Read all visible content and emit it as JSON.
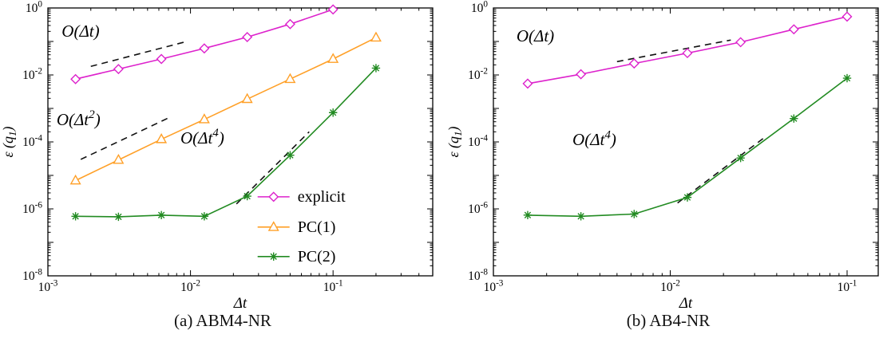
{
  "colors": {
    "explicit": "#dd22cc",
    "pc1": "#ffa028",
    "pc2": "#228B22",
    "guide": "#111111",
    "frame": "#000000"
  },
  "chart_data": [
    {
      "type": "line",
      "caption": "(a) ABM4-NR",
      "xlabel": "Δt",
      "ylabel": "ε (q_{1})",
      "xscale": "log",
      "yscale": "log",
      "xlim": [
        0.001,
        0.5
      ],
      "ylim": [
        1e-08,
        1
      ],
      "x_tick_exponents": [
        -3,
        -2,
        -1
      ],
      "y_tick_exponents": [
        0,
        -2,
        -4,
        -6,
        -8
      ],
      "legend": true,
      "series": [
        {
          "name": "explicit",
          "marker": "diamond",
          "color": "#dd22cc",
          "x": [
            0.0015625,
            0.003125,
            0.00625,
            0.0125,
            0.025,
            0.05,
            0.1
          ],
          "y": [
            0.0075,
            0.015,
            0.03,
            0.062,
            0.135,
            0.33,
            0.9
          ]
        },
        {
          "name": "PC(1)",
          "marker": "triangle",
          "color": "#ffa028",
          "x": [
            0.0015625,
            0.003125,
            0.00625,
            0.0125,
            0.025,
            0.05,
            0.1,
            0.2
          ],
          "y": [
            7e-06,
            2.9e-05,
            0.00012,
            0.00047,
            0.0019,
            0.0075,
            0.03,
            0.13
          ]
        },
        {
          "name": "PC(2)",
          "marker": "star",
          "color": "#228B22",
          "x": [
            0.0015625,
            0.003125,
            0.00625,
            0.0125,
            0.025,
            0.05,
            0.1,
            0.2
          ],
          "y": [
            6e-07,
            5.8e-07,
            6.5e-07,
            6e-07,
            2.4e-06,
            4e-05,
            0.00075,
            0.016
          ]
        }
      ],
      "guides": [
        {
          "label": "O(Δt)",
          "label_at": [
            0.00125,
            0.14
          ],
          "x": [
            0.002,
            0.009
          ],
          "y": [
            0.018,
            0.095
          ]
        },
        {
          "label": "O(Δt^{2})",
          "label_at": [
            0.00115,
            0.00032
          ],
          "x": [
            0.0017,
            0.007
          ],
          "y": [
            3e-05,
            0.00052
          ]
        },
        {
          "label": "O(Δt^{4})",
          "label_at": [
            0.0085,
            9e-05
          ],
          "x": [
            0.021,
            0.068
          ],
          "y": [
            1.4e-06,
            0.0002
          ]
        }
      ]
    },
    {
      "type": "line",
      "caption": "(b) AB4-NR",
      "xlabel": "Δt",
      "ylabel": "ε (q_{1})",
      "xscale": "log",
      "yscale": "log",
      "xlim": [
        0.001,
        0.15
      ],
      "ylim": [
        1e-08,
        1
      ],
      "x_tick_exponents": [
        -3,
        -2,
        -1
      ],
      "y_tick_exponents": [
        0,
        -2,
        -4,
        -6,
        -8
      ],
      "legend": false,
      "series": [
        {
          "name": "explicit",
          "marker": "diamond",
          "color": "#dd22cc",
          "x": [
            0.0015625,
            0.003125,
            0.00625,
            0.0125,
            0.025,
            0.05,
            0.1
          ],
          "y": [
            0.0055,
            0.0105,
            0.022,
            0.045,
            0.095,
            0.23,
            0.55
          ]
        },
        {
          "name": "PC(2)",
          "marker": "star",
          "color": "#228B22",
          "x": [
            0.0015625,
            0.003125,
            0.00625,
            0.0125,
            0.025,
            0.05,
            0.1
          ],
          "y": [
            6.5e-07,
            6e-07,
            7e-07,
            2.2e-06,
            3.3e-05,
            0.0005,
            0.008
          ]
        }
      ],
      "guides": [
        {
          "label": "O(Δt)",
          "label_at": [
            0.00135,
            0.1
          ],
          "x": [
            0.005,
            0.022
          ],
          "y": [
            0.025,
            0.11
          ]
        },
        {
          "label": "O(Δt^{4})",
          "label_at": [
            0.0028,
            8e-05
          ],
          "x": [
            0.011,
            0.035
          ],
          "y": [
            1.5e-06,
            0.00015
          ]
        }
      ]
    }
  ]
}
